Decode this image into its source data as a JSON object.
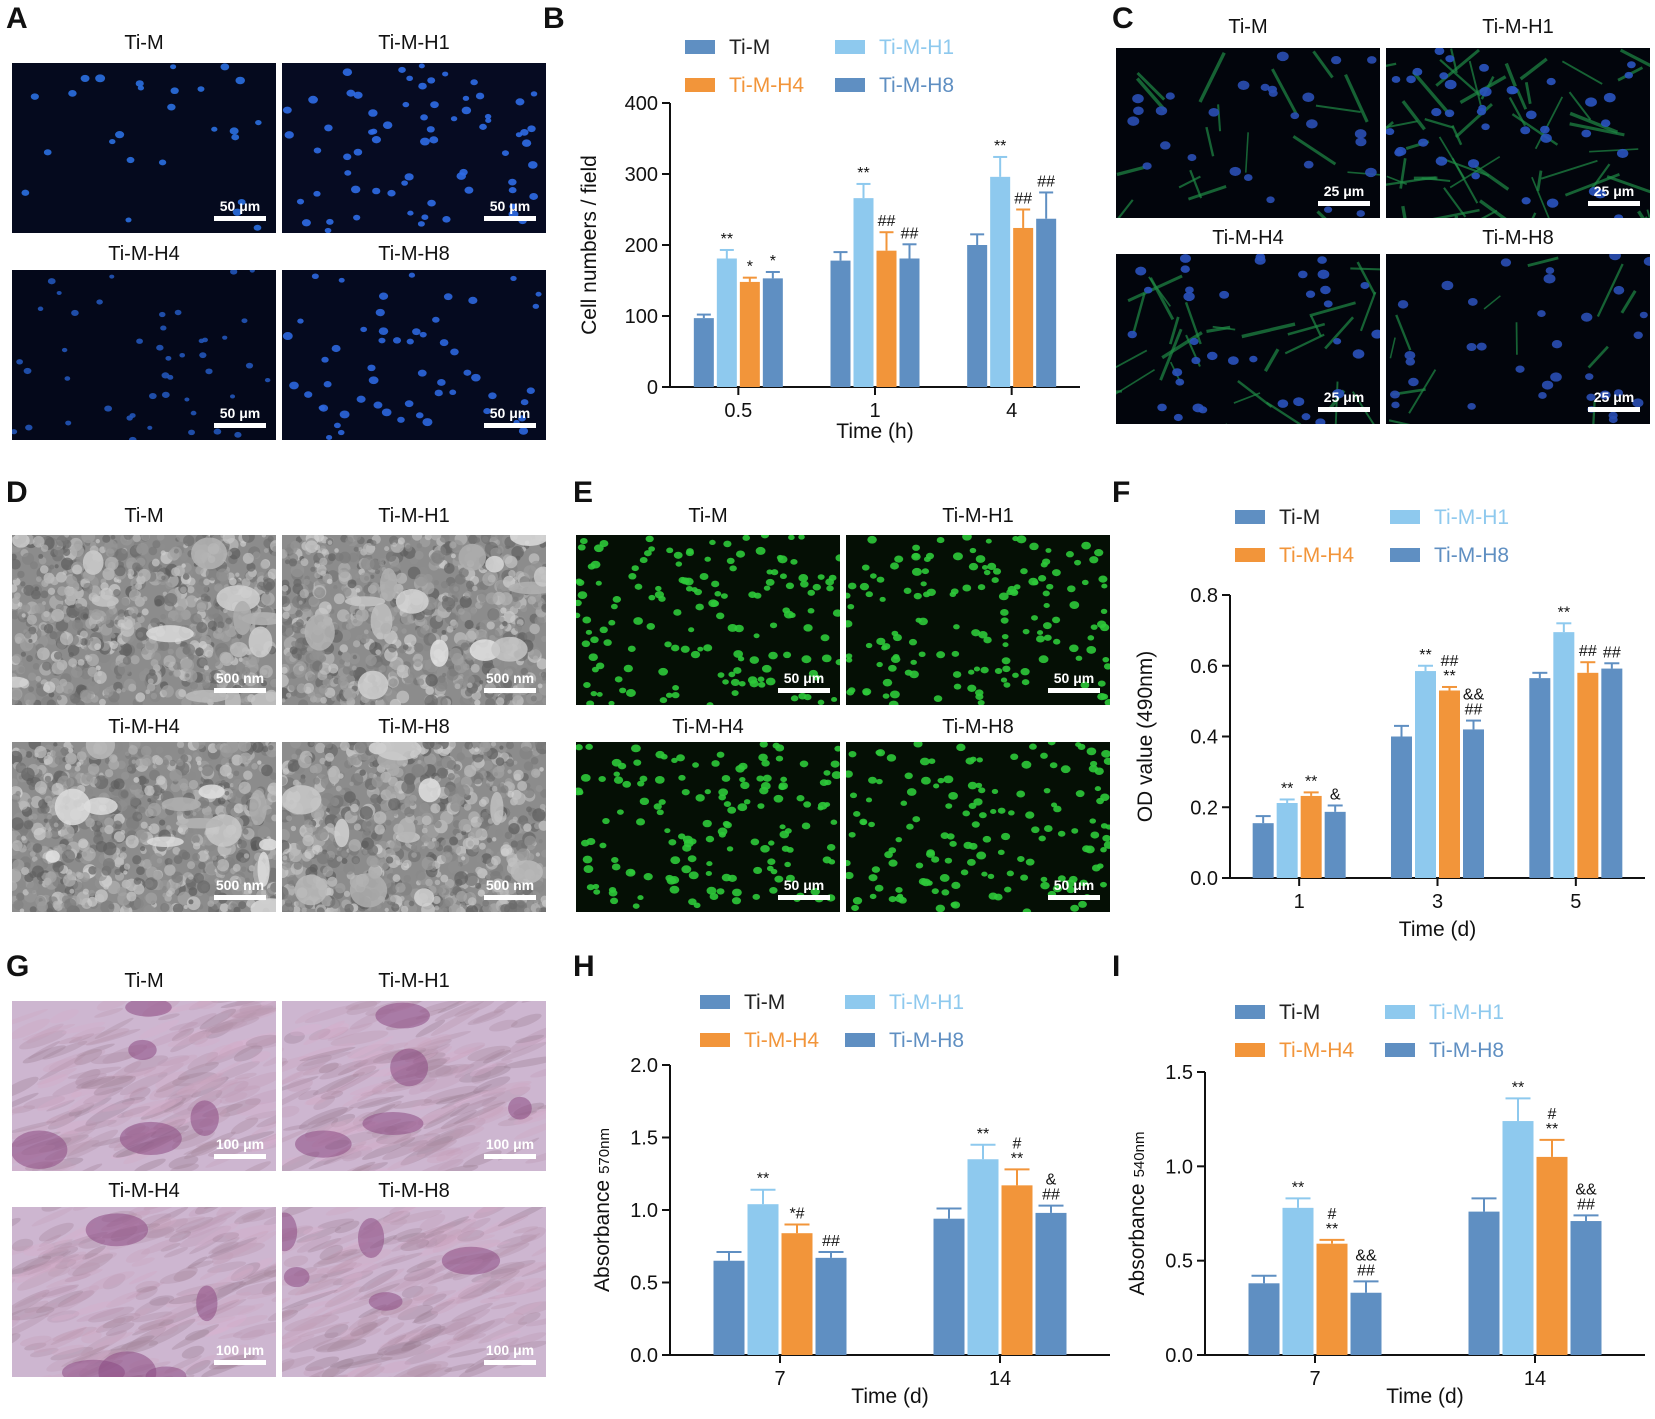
{
  "panels": {
    "A": {
      "letter": "A",
      "scale": "50 μm",
      "images": [
        {
          "label": "Ti-M",
          "style": "dapi-sparse"
        },
        {
          "label": "Ti-M-H1",
          "style": "dapi-dense"
        },
        {
          "label": "Ti-M-H4",
          "style": "dapi-dim"
        },
        {
          "label": "Ti-M-H8",
          "style": "dapi-medium"
        }
      ]
    },
    "C": {
      "letter": "C",
      "scale": "25 μm",
      "images": [
        {
          "label": "Ti-M",
          "style": "cyto-sparse"
        },
        {
          "label": "Ti-M-H1",
          "style": "cyto-dense"
        },
        {
          "label": "Ti-M-H4",
          "style": "cyto-medium"
        },
        {
          "label": "Ti-M-H8",
          "style": "cyto-dim"
        }
      ]
    },
    "D": {
      "letter": "D",
      "scale": "500 nm",
      "images": [
        {
          "label": "Ti-M",
          "style": "sem"
        },
        {
          "label": "Ti-M-H1",
          "style": "sem"
        },
        {
          "label": "Ti-M-H4",
          "style": "sem"
        },
        {
          "label": "Ti-M-H8",
          "style": "sem"
        }
      ]
    },
    "E": {
      "letter": "E",
      "scale": "50 μm",
      "images": [
        {
          "label": "Ti-M",
          "style": "green"
        },
        {
          "label": "Ti-M-H1",
          "style": "green"
        },
        {
          "label": "Ti-M-H4",
          "style": "green"
        },
        {
          "label": "Ti-M-H8",
          "style": "green"
        }
      ]
    },
    "G": {
      "letter": "G",
      "scale": "100 μm",
      "images": [
        {
          "label": "Ti-M",
          "style": "stain"
        },
        {
          "label": "Ti-M-H1",
          "style": "stain"
        },
        {
          "label": "Ti-M-H4",
          "style": "stain"
        },
        {
          "label": "Ti-M-H8",
          "style": "stain"
        }
      ]
    }
  },
  "colors": {
    "Ti-M": "#5f8fc2",
    "Ti-M-H1": "#8ec9ee",
    "Ti-M-H4": "#f2953a",
    "Ti-M-H8": "#5f8fc2",
    "legend_text_H1": "#8ec9ee",
    "legend_text_H4": "#f2953a",
    "legend_text_H8": "#5f8fc2"
  },
  "chart_data": [
    {
      "panel": "B",
      "letter": "B",
      "type": "bar",
      "xlabel": "Time (h)",
      "ylabel": "Cell numbers / field",
      "ylim": [
        0,
        400
      ],
      "yticks": [
        0,
        100,
        200,
        300,
        400
      ],
      "categories": [
        "0.5",
        "1",
        "4"
      ],
      "legend": [
        "Ti-M",
        "Ti-M-H1",
        "Ti-M-H4",
        "Ti-M-H8"
      ],
      "series": [
        {
          "name": "Ti-M",
          "values": [
            97,
            178,
            200
          ],
          "errors": [
            5,
            12,
            15
          ],
          "annotations": [
            "",
            "",
            ""
          ]
        },
        {
          "name": "Ti-M-H1",
          "values": [
            181,
            266,
            296
          ],
          "errors": [
            12,
            20,
            28
          ],
          "annotations": [
            "**",
            "**",
            "**"
          ]
        },
        {
          "name": "Ti-M-H4",
          "values": [
            148,
            192,
            224
          ],
          "errors": [
            6,
            26,
            26
          ],
          "annotations": [
            "*",
            "##",
            "##"
          ]
        },
        {
          "name": "Ti-M-H8",
          "values": [
            153,
            181,
            237
          ],
          "errors": [
            9,
            20,
            37
          ],
          "annotations": [
            "*",
            "##",
            "##"
          ]
        }
      ]
    },
    {
      "panel": "F",
      "letter": "F",
      "type": "bar",
      "xlabel": "Time (d)",
      "ylabel": "OD value (490nm)",
      "ylim": [
        0,
        0.8
      ],
      "yticks": [
        "0.0",
        "0.2",
        "0.4",
        "0.6",
        "0.8"
      ],
      "categories": [
        "1",
        "3",
        "5"
      ],
      "legend": [
        "Ti-M",
        "Ti-M-H1",
        "Ti-M-H4",
        "Ti-M-H8"
      ],
      "series": [
        {
          "name": "Ti-M",
          "values": [
            0.155,
            0.4,
            0.565
          ],
          "errors": [
            0.02,
            0.03,
            0.015
          ],
          "annotations": [
            "",
            "",
            ""
          ]
        },
        {
          "name": "Ti-M-H1",
          "values": [
            0.212,
            0.585,
            0.695
          ],
          "errors": [
            0.01,
            0.015,
            0.025
          ],
          "annotations": [
            "**",
            "**",
            "**"
          ]
        },
        {
          "name": "Ti-M-H4",
          "values": [
            0.232,
            0.53,
            0.58
          ],
          "errors": [
            0.01,
            0.01,
            0.03
          ],
          "annotations": [
            "**",
            "##\n**",
            "##"
          ]
        },
        {
          "name": "Ti-M-H8",
          "values": [
            0.187,
            0.42,
            0.592
          ],
          "errors": [
            0.018,
            0.025,
            0.015
          ],
          "annotations": [
            "&",
            "&&\n##",
            "##"
          ]
        }
      ]
    },
    {
      "panel": "H",
      "letter": "H",
      "type": "bar",
      "xlabel": "Time (d)",
      "ylabel": "Absorbance",
      "ylabel_sub": "570nm",
      "ylim": [
        0,
        2.0
      ],
      "yticks": [
        "0.0",
        "0.5",
        "1.0",
        "1.5",
        "2.0"
      ],
      "categories": [
        "7",
        "14"
      ],
      "legend": [
        "Ti-M",
        "Ti-M-H1",
        "Ti-M-H4",
        "Ti-M-H8"
      ],
      "series": [
        {
          "name": "Ti-M",
          "values": [
            0.65,
            0.94
          ],
          "errors": [
            0.06,
            0.07
          ],
          "annotations": [
            "",
            ""
          ]
        },
        {
          "name": "Ti-M-H1",
          "values": [
            1.04,
            1.35
          ],
          "errors": [
            0.1,
            0.1
          ],
          "annotations": [
            "**",
            "**"
          ]
        },
        {
          "name": "Ti-M-H4",
          "values": [
            0.84,
            1.17
          ],
          "errors": [
            0.06,
            0.11
          ],
          "annotations": [
            "*#",
            "#\n**"
          ]
        },
        {
          "name": "Ti-M-H8",
          "values": [
            0.67,
            0.98
          ],
          "errors": [
            0.04,
            0.05
          ],
          "annotations": [
            "##",
            "&\n##"
          ]
        }
      ]
    },
    {
      "panel": "I",
      "letter": "I",
      "type": "bar",
      "xlabel": "Time (d)",
      "ylabel": "Absorbance",
      "ylabel_sub": "540nm",
      "ylim": [
        0,
        1.5
      ],
      "yticks": [
        "0.0",
        "0.5",
        "1.0",
        "1.5"
      ],
      "categories": [
        "7",
        "14"
      ],
      "legend": [
        "Ti-M",
        "Ti-M-H1",
        "Ti-M-H4",
        "Ti-M-H8"
      ],
      "series": [
        {
          "name": "Ti-M",
          "values": [
            0.38,
            0.76
          ],
          "errors": [
            0.04,
            0.07
          ],
          "annotations": [
            "",
            ""
          ]
        },
        {
          "name": "Ti-M-H1",
          "values": [
            0.78,
            1.24
          ],
          "errors": [
            0.05,
            0.12
          ],
          "annotations": [
            "**",
            "**"
          ]
        },
        {
          "name": "Ti-M-H4",
          "values": [
            0.59,
            1.05
          ],
          "errors": [
            0.02,
            0.09
          ],
          "annotations": [
            "#\n**",
            "#\n**"
          ]
        },
        {
          "name": "Ti-M-H8",
          "values": [
            0.33,
            0.71
          ],
          "errors": [
            0.06,
            0.03
          ],
          "annotations": [
            "&&\n##",
            "&&\n##"
          ]
        }
      ]
    }
  ]
}
